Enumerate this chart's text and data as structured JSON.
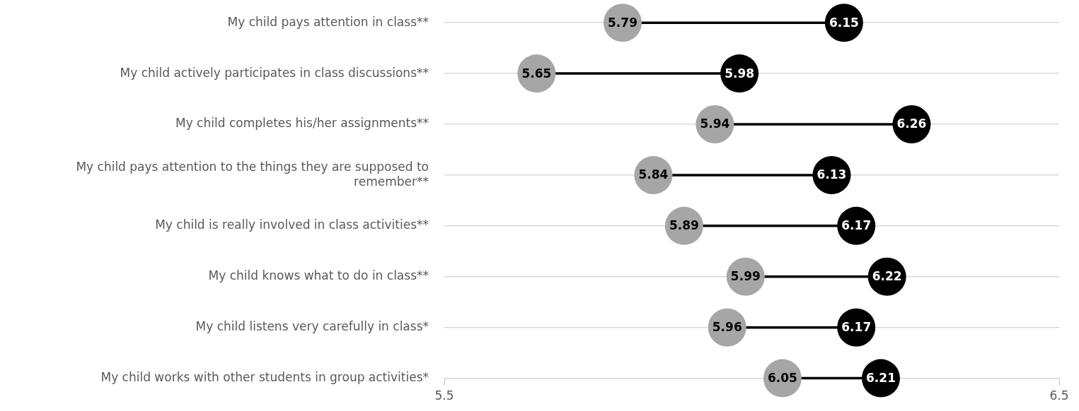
{
  "chart_data": {
    "type": "scatter",
    "orientation": "horizontal",
    "categories": [
      "My child pays attention in class**",
      "My child actively participates in class discussions**",
      "My child completes his/her assignments**",
      "My child pays attention to the things they are supposed to remember**",
      "My child is really involved in class activities**",
      "My child knows what to do in class**",
      "My child listens very carefully in class*",
      "My child works with other students in group activities*"
    ],
    "series": [
      {
        "color": "#a6a6a6",
        "values": [
          5.79,
          5.65,
          5.94,
          5.84,
          5.89,
          5.99,
          5.96,
          6.05
        ]
      },
      {
        "color": "#000000",
        "values": [
          6.15,
          5.98,
          6.26,
          6.13,
          6.17,
          6.22,
          6.17,
          6.21
        ]
      }
    ],
    "xlim": [
      5.5,
      6.5
    ],
    "xticks": [
      5.5,
      6.5
    ],
    "grid": "y",
    "legend": false,
    "marker": "circle",
    "data_labels": true
  }
}
